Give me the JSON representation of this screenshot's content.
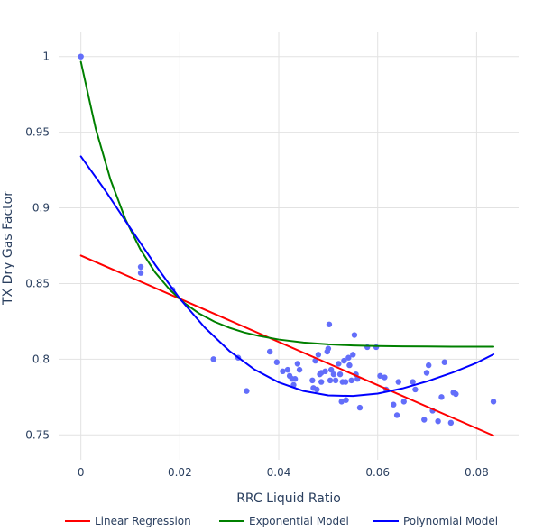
{
  "chart_data": {
    "type": "scatter",
    "title": "",
    "xlabel": "RRC Liquid Ratio",
    "ylabel": "TX Dry Gas Factor",
    "xlim": [
      -0.0045,
      0.0885
    ],
    "ylim": [
      0.7335,
      1.0165
    ],
    "grid": true,
    "legend_position": "bottom",
    "x_ticks": [
      0,
      0.02,
      0.04,
      0.06,
      0.08
    ],
    "x_tick_labels": [
      "0",
      "0.02",
      "0.04",
      "0.06",
      "0.08"
    ],
    "y_ticks": [
      0.75,
      0.8,
      0.85,
      0.9,
      0.95,
      1
    ],
    "y_tick_labels": [
      "0.75",
      "0.8",
      "0.85",
      "0.9",
      "0.95",
      "1"
    ],
    "scatter": {
      "color": "#636efa",
      "points": [
        [
          0.0,
          1.0
        ],
        [
          0.0121,
          0.861
        ],
        [
          0.0121,
          0.857
        ],
        [
          0.0185,
          0.846
        ],
        [
          0.0268,
          0.8
        ],
        [
          0.0318,
          0.801
        ],
        [
          0.0335,
          0.779
        ],
        [
          0.0382,
          0.805
        ],
        [
          0.0396,
          0.798
        ],
        [
          0.0408,
          0.792
        ],
        [
          0.0418,
          0.793
        ],
        [
          0.0422,
          0.789
        ],
        [
          0.0427,
          0.787
        ],
        [
          0.043,
          0.783
        ],
        [
          0.0433,
          0.787
        ],
        [
          0.0438,
          0.797
        ],
        [
          0.0442,
          0.793
        ],
        [
          0.0468,
          0.786
        ],
        [
          0.047,
          0.781
        ],
        [
          0.0474,
          0.799
        ],
        [
          0.0477,
          0.78
        ],
        [
          0.048,
          0.803
        ],
        [
          0.0483,
          0.79
        ],
        [
          0.0486,
          0.785
        ],
        [
          0.0486,
          0.791
        ],
        [
          0.0494,
          0.792
        ],
        [
          0.0498,
          0.805
        ],
        [
          0.05,
          0.807
        ],
        [
          0.0502,
          0.823
        ],
        [
          0.0504,
          0.786
        ],
        [
          0.0506,
          0.793
        ],
        [
          0.0511,
          0.79
        ],
        [
          0.0515,
          0.786
        ],
        [
          0.0521,
          0.797
        ],
        [
          0.0524,
          0.79
        ],
        [
          0.0527,
          0.772
        ],
        [
          0.0529,
          0.785
        ],
        [
          0.0532,
          0.799
        ],
        [
          0.0535,
          0.785
        ],
        [
          0.0536,
          0.773
        ],
        [
          0.0541,
          0.801
        ],
        [
          0.0543,
          0.796
        ],
        [
          0.0547,
          0.786
        ],
        [
          0.055,
          0.803
        ],
        [
          0.0553,
          0.816
        ],
        [
          0.0556,
          0.79
        ],
        [
          0.0559,
          0.787
        ],
        [
          0.0564,
          0.768
        ],
        [
          0.0579,
          0.808
        ],
        [
          0.0597,
          0.808
        ],
        [
          0.0605,
          0.789
        ],
        [
          0.0614,
          0.788
        ],
        [
          0.0617,
          0.78
        ],
        [
          0.0632,
          0.77
        ],
        [
          0.0639,
          0.763
        ],
        [
          0.0642,
          0.785
        ],
        [
          0.0653,
          0.772
        ],
        [
          0.0671,
          0.785
        ],
        [
          0.0676,
          0.78
        ],
        [
          0.0694,
          0.76
        ],
        [
          0.0699,
          0.791
        ],
        [
          0.0703,
          0.796
        ],
        [
          0.0711,
          0.766
        ],
        [
          0.0722,
          0.759
        ],
        [
          0.0729,
          0.775
        ],
        [
          0.0735,
          0.798
        ],
        [
          0.0748,
          0.758
        ],
        [
          0.0753,
          0.778
        ],
        [
          0.0758,
          0.777
        ],
        [
          0.0834,
          0.772
        ]
      ]
    },
    "series": [
      {
        "name": "Linear Regression",
        "type": "line",
        "color": "#ff0000",
        "x": [
          0,
          0.0834
        ],
        "y": [
          0.8685,
          0.7495
        ]
      },
      {
        "name": "Exponential Model",
        "type": "line",
        "color": "#008000",
        "x": [
          0,
          0.003,
          0.006,
          0.009,
          0.012,
          0.015,
          0.018,
          0.021,
          0.024,
          0.027,
          0.03,
          0.033,
          0.036,
          0.04,
          0.045,
          0.05,
          0.055,
          0.06,
          0.065,
          0.07,
          0.075,
          0.08,
          0.0834
        ],
        "y": [
          0.9965,
          0.9523,
          0.9185,
          0.8925,
          0.8727,
          0.8574,
          0.8458,
          0.8369,
          0.83,
          0.8248,
          0.8208,
          0.8177,
          0.8154,
          0.813,
          0.811,
          0.8098,
          0.8091,
          0.8087,
          0.8085,
          0.8084,
          0.8083,
          0.8083,
          0.8083
        ]
      },
      {
        "name": "Polynomial Model",
        "type": "line",
        "color": "#0000ff",
        "x": [
          0,
          0.005,
          0.01,
          0.015,
          0.02,
          0.025,
          0.03,
          0.035,
          0.04,
          0.045,
          0.05,
          0.055,
          0.06,
          0.065,
          0.07,
          0.075,
          0.08,
          0.0834
        ],
        "y": [
          0.934,
          0.9111,
          0.8866,
          0.8625,
          0.84,
          0.8211,
          0.8055,
          0.7934,
          0.7847,
          0.779,
          0.7761,
          0.7757,
          0.7773,
          0.7807,
          0.7854,
          0.791,
          0.7976,
          0.8032
        ]
      }
    ]
  }
}
